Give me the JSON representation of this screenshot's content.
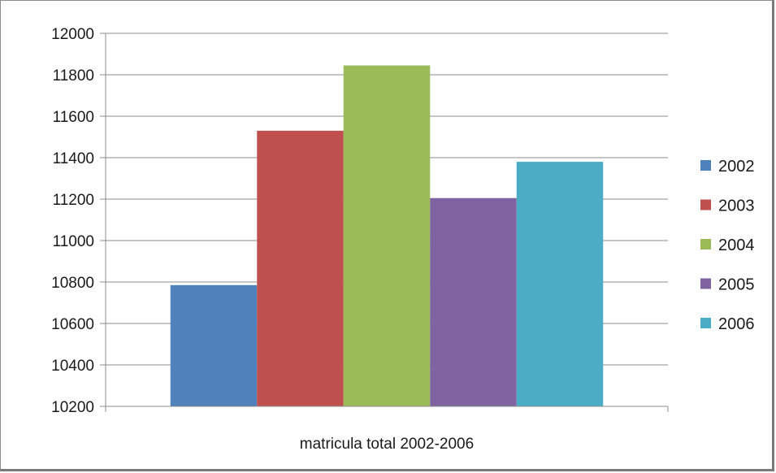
{
  "chart_data": {
    "type": "bar",
    "categories": [
      "matricula total 2002-2006"
    ],
    "series": [
      {
        "name": "2002",
        "values": [
          10785
        ],
        "color": "#4F81BD"
      },
      {
        "name": "2003",
        "values": [
          11530
        ],
        "color": "#C0504D"
      },
      {
        "name": "2004",
        "values": [
          11845
        ],
        "color": "#9BBB59"
      },
      {
        "name": "2005",
        "values": [
          11205
        ],
        "color": "#8064A2"
      },
      {
        "name": "2006",
        "values": [
          11380
        ],
        "color": "#4BACC6"
      }
    ],
    "title": "",
    "xlabel": "",
    "ylabel": "",
    "ylim": [
      10200,
      12000
    ],
    "yticks": [
      "10200",
      "10400",
      "10600",
      "10800",
      "11000",
      "11200",
      "11400",
      "11600",
      "11800",
      "12000"
    ],
    "grid": true,
    "legend_position": "right"
  }
}
